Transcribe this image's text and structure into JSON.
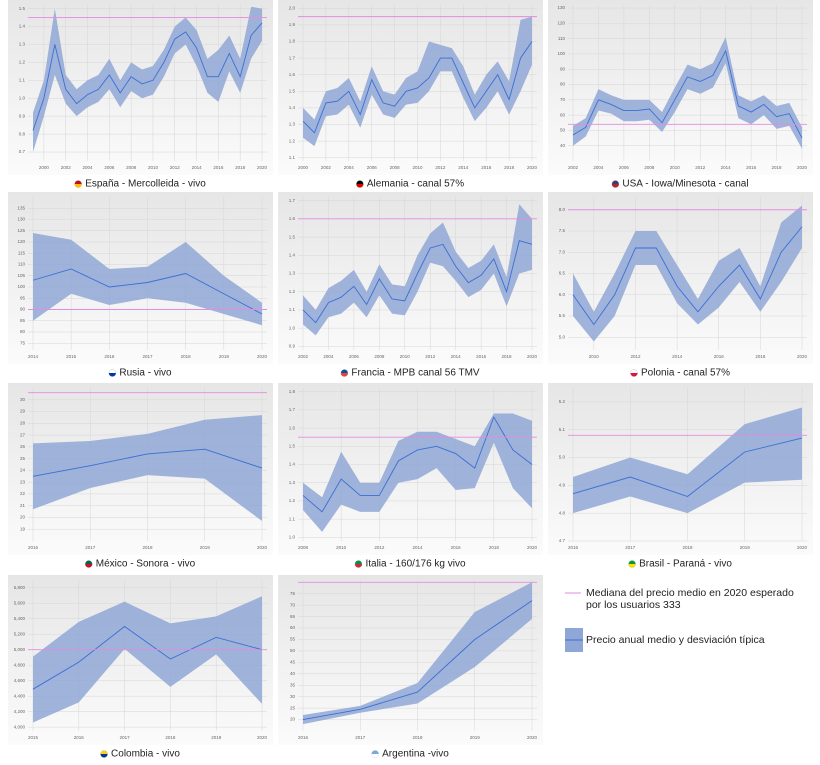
{
  "legend": {
    "median": "Mediana del precio medio en 2020 esperado por los usuarios 333",
    "mean": "Precio anual medio y desviación típica"
  },
  "chart_data": [
    {
      "type": "line",
      "title": "España - Mercolleida - vivo",
      "color": "#3b6fd4",
      "band_color": "#8fa7d6",
      "median_color": "#e58be0",
      "grid": true,
      "x": [
        1999,
        2000,
        2001,
        2002,
        2003,
        2004,
        2005,
        2006,
        2007,
        2008,
        2009,
        2010,
        2011,
        2012,
        2013,
        2014,
        2015,
        2016,
        2017,
        2018,
        2019,
        2020
      ],
      "values": [
        0.82,
        1.0,
        1.3,
        1.05,
        0.97,
        1.02,
        1.05,
        1.13,
        1.03,
        1.12,
        1.08,
        1.1,
        1.2,
        1.33,
        1.37,
        1.28,
        1.12,
        1.12,
        1.25,
        1.12,
        1.35,
        1.42
      ],
      "upper": [
        0.92,
        1.1,
        1.5,
        1.13,
        1.05,
        1.1,
        1.13,
        1.22,
        1.1,
        1.2,
        1.16,
        1.18,
        1.27,
        1.4,
        1.45,
        1.38,
        1.22,
        1.27,
        1.35,
        1.22,
        1.51,
        1.5
      ],
      "lower": [
        0.7,
        0.9,
        1.13,
        0.97,
        0.9,
        0.95,
        0.98,
        1.05,
        0.95,
        1.04,
        1.0,
        1.02,
        1.12,
        1.25,
        1.3,
        1.18,
        1.03,
        0.98,
        1.15,
        1.03,
        1.22,
        1.32
      ],
      "median": 1.45,
      "xlim": [
        1999,
        2020
      ],
      "xticks": [
        2000,
        2002,
        2004,
        2006,
        2008,
        2010,
        2012,
        2014,
        2016,
        2018,
        2020
      ],
      "ylim": [
        0.65,
        1.52
      ],
      "yticks": [
        0.7,
        0.8,
        0.9,
        {
          "value": 1,
          "label": "1.0"
        },
        1.1,
        1.2,
        1.3,
        1.4,
        1.5
      ]
    },
    {
      "type": "line",
      "title": "Alemania - canal 57%",
      "color": "#3b6fd4",
      "band_color": "#8fa7d6",
      "median_color": "#e58be0",
      "grid": true,
      "x": [
        2000,
        2001,
        2002,
        2003,
        2004,
        2005,
        2006,
        2007,
        2008,
        2009,
        2010,
        2011,
        2012,
        2013,
        2014,
        2015,
        2016,
        2017,
        2018,
        2019,
        2020
      ],
      "values": [
        1.32,
        1.25,
        1.43,
        1.44,
        1.5,
        1.36,
        1.57,
        1.43,
        1.41,
        1.5,
        1.52,
        1.58,
        1.7,
        1.7,
        1.55,
        1.4,
        1.5,
        1.6,
        1.45,
        1.7,
        1.8
      ],
      "upper": [
        1.4,
        1.33,
        1.5,
        1.52,
        1.58,
        1.44,
        1.65,
        1.5,
        1.48,
        1.58,
        1.62,
        1.8,
        1.78,
        1.76,
        1.65,
        1.48,
        1.6,
        1.68,
        1.56,
        1.93,
        1.95
      ],
      "lower": [
        1.22,
        1.17,
        1.35,
        1.36,
        1.42,
        1.28,
        1.48,
        1.36,
        1.34,
        1.42,
        1.43,
        1.5,
        1.62,
        1.62,
        1.46,
        1.32,
        1.4,
        1.5,
        1.36,
        1.5,
        1.66
      ],
      "median": 1.95,
      "xlim": [
        2000,
        2020
      ],
      "xticks": [
        2000,
        2002,
        2004,
        2006,
        2008,
        2010,
        2012,
        2014,
        2016,
        2018,
        2020
      ],
      "ylim": [
        1.08,
        2.02
      ],
      "yticks": [
        1.1,
        1.2,
        1.3,
        1.4,
        1.5,
        1.6,
        1.7,
        1.8,
        1.9,
        {
          "value": 2,
          "label": "2.0"
        }
      ]
    },
    {
      "type": "line",
      "title": "USA - Iowa/Minesota - canal",
      "color": "#3b6fd4",
      "band_color": "#8fa7d6",
      "median_color": "#e58be0",
      "grid": true,
      "x": [
        2002,
        2003,
        2004,
        2005,
        2006,
        2007,
        2008,
        2009,
        2010,
        2011,
        2012,
        2013,
        2014,
        2015,
        2016,
        2017,
        2018,
        2019,
        2020
      ],
      "values": [
        47,
        52,
        70,
        67,
        63,
        63,
        64,
        55,
        70,
        85,
        82,
        86,
        102,
        66,
        62,
        67,
        59,
        61,
        45
      ],
      "upper": [
        53,
        58,
        77,
        73,
        70,
        70,
        70,
        62,
        78,
        93,
        90,
        94,
        111,
        73,
        69,
        73,
        66,
        68,
        52
      ],
      "lower": [
        40,
        46,
        63,
        61,
        56,
        56,
        57,
        49,
        62,
        77,
        74,
        78,
        94,
        58,
        54,
        60,
        51,
        53,
        38
      ],
      "median": 54,
      "xlim": [
        2002,
        2020
      ],
      "xticks": [
        2002,
        2004,
        2006,
        2008,
        2010,
        2012,
        2014,
        2016,
        2018,
        2020
      ],
      "ylim": [
        30,
        132
      ],
      "yticks": [
        40,
        50,
        60,
        70,
        80,
        90,
        100,
        110,
        120,
        130
      ]
    },
    {
      "type": "line",
      "title": "Rusia - vivo",
      "color": "#3b6fd4",
      "band_color": "#8fa7d6",
      "median_color": "#e58be0",
      "grid": true,
      "x": [
        2014,
        2015,
        2016,
        2017,
        2018,
        2019,
        2020
      ],
      "values": [
        103,
        108,
        100,
        102,
        106,
        97,
        88
      ],
      "upper": [
        124,
        121,
        108,
        109,
        120,
        105,
        93
      ],
      "lower": [
        85,
        97,
        92,
        95,
        93,
        88,
        83
      ],
      "median": 90,
      "xlim": [
        2014,
        2020
      ],
      "xticks": [
        2014,
        2015,
        2016,
        2017,
        2018,
        2019,
        2020
      ],
      "ylim": [
        72,
        140
      ],
      "yticks": [
        75,
        80,
        85,
        90,
        95,
        100,
        105,
        110,
        115,
        120,
        125,
        130,
        135
      ]
    },
    {
      "type": "line",
      "title": "Francia - MPB canal 56 TMV",
      "color": "#3b6fd4",
      "band_color": "#8fa7d6",
      "median_color": "#e58be0",
      "grid": true,
      "x": [
        2002,
        2003,
        2004,
        2005,
        2006,
        2007,
        2008,
        2009,
        2010,
        2011,
        2012,
        2013,
        2014,
        2015,
        2016,
        2017,
        2018,
        2019,
        2020
      ],
      "values": [
        1.1,
        1.03,
        1.14,
        1.17,
        1.23,
        1.13,
        1.27,
        1.16,
        1.15,
        1.3,
        1.44,
        1.46,
        1.34,
        1.25,
        1.29,
        1.38,
        1.2,
        1.48,
        1.46
      ],
      "upper": [
        1.18,
        1.1,
        1.22,
        1.26,
        1.32,
        1.2,
        1.35,
        1.24,
        1.23,
        1.4,
        1.52,
        1.58,
        1.42,
        1.33,
        1.37,
        1.46,
        1.28,
        1.68,
        1.6
      ],
      "lower": [
        1.02,
        0.96,
        1.06,
        1.08,
        1.14,
        1.06,
        1.18,
        1.08,
        1.07,
        1.2,
        1.36,
        1.34,
        1.26,
        1.17,
        1.21,
        1.3,
        1.12,
        1.3,
        1.32
      ],
      "median": 1.6,
      "xlim": [
        2002,
        2020
      ],
      "xticks": [
        2002,
        2004,
        2006,
        2008,
        2010,
        2012,
        2014,
        2016,
        2018,
        2020
      ],
      "ylim": [
        0.88,
        1.72
      ],
      "yticks": [
        0.9,
        {
          "value": 1,
          "label": "1.0"
        },
        1.1,
        1.2,
        1.3,
        1.4,
        1.5,
        1.6,
        1.7
      ]
    },
    {
      "type": "line",
      "title": "Polonia - canal 57%",
      "color": "#3b6fd4",
      "band_color": "#8fa7d6",
      "median_color": "#e58be0",
      "grid": true,
      "x": [
        2009,
        2010,
        2011,
        2012,
        2013,
        2014,
        2015,
        2016,
        2017,
        2018,
        2019,
        2020
      ],
      "values": [
        6.0,
        5.3,
        6.0,
        7.1,
        7.1,
        6.2,
        5.6,
        6.2,
        6.7,
        5.9,
        7.0,
        7.6
      ],
      "upper": [
        6.5,
        5.6,
        6.5,
        7.5,
        7.5,
        6.7,
        5.9,
        6.8,
        7.1,
        6.2,
        7.7,
        8.1
      ],
      "lower": [
        5.5,
        4.9,
        5.5,
        6.7,
        6.7,
        5.8,
        5.3,
        5.7,
        6.3,
        5.6,
        6.3,
        7.1
      ],
      "median": 8.0,
      "xlim": [
        2009,
        2020
      ],
      "xticks": [
        2010,
        2012,
        2014,
        2016,
        2018,
        2020
      ],
      "ylim": [
        4.7,
        8.3
      ],
      "yticks": [
        {
          "value": 5,
          "label": "5.0"
        },
        5.5,
        {
          "value": 6,
          "label": "6.0"
        },
        6.5,
        {
          "value": 7,
          "label": "7.0"
        },
        7.5,
        {
          "value": 8,
          "label": "8.0"
        }
      ]
    },
    {
      "type": "line",
      "title": "México - Sonora - vivo",
      "color": "#3b6fd4",
      "band_color": "#8fa7d6",
      "median_color": "#e58be0",
      "grid": true,
      "x": [
        2016,
        2017,
        2018,
        2019,
        2020
      ],
      "values": [
        23.5,
        24.4,
        25.4,
        25.8,
        24.2
      ],
      "upper": [
        26.3,
        26.5,
        27.1,
        28.3,
        28.7
      ],
      "lower": [
        20.7,
        22.5,
        23.6,
        23.3,
        19.7
      ],
      "median": 30.6,
      "xlim": [
        2016,
        2020
      ],
      "xticks": [
        2016,
        2017,
        2018,
        2019,
        2020
      ],
      "ylim": [
        18,
        31
      ],
      "yticks": [
        19,
        20,
        21,
        22,
        23,
        24,
        25,
        26,
        27,
        28,
        29,
        30
      ]
    },
    {
      "type": "line",
      "title": "Italia - 160/176 kg vivo",
      "color": "#3b6fd4",
      "band_color": "#8fa7d6",
      "median_color": "#e58be0",
      "grid": true,
      "x": [
        2008,
        2009,
        2010,
        2011,
        2012,
        2013,
        2014,
        2015,
        2016,
        2017,
        2018,
        2019,
        2020
      ],
      "values": [
        1.23,
        1.14,
        1.32,
        1.23,
        1.23,
        1.42,
        1.48,
        1.5,
        1.46,
        1.38,
        1.66,
        1.48,
        1.4
      ],
      "upper": [
        1.3,
        1.22,
        1.47,
        1.3,
        1.3,
        1.53,
        1.58,
        1.58,
        1.54,
        1.5,
        1.68,
        1.68,
        1.64
      ],
      "lower": [
        1.15,
        1.03,
        1.18,
        1.14,
        1.14,
        1.3,
        1.32,
        1.38,
        1.26,
        1.27,
        1.52,
        1.27,
        1.16
      ],
      "median": 1.55,
      "xlim": [
        2008,
        2020
      ],
      "xticks": [
        2008,
        2010,
        2012,
        2014,
        2016,
        2018,
        2020
      ],
      "ylim": [
        0.98,
        1.82
      ],
      "yticks": [
        {
          "value": 1,
          "label": "1.0"
        },
        1.1,
        1.2,
        1.3,
        1.4,
        1.5,
        1.6,
        1.7,
        1.8
      ]
    },
    {
      "type": "line",
      "title": "Brasil - Paraná - vivo",
      "color": "#3b6fd4",
      "band_color": "#8fa7d6",
      "median_color": "#e58be0",
      "grid": true,
      "x": [
        2016,
        2017,
        2018,
        2019,
        2020
      ],
      "values": [
        4.87,
        4.93,
        4.86,
        5.02,
        5.07
      ],
      "upper": [
        4.93,
        5.0,
        4.94,
        5.12,
        5.18
      ],
      "lower": [
        4.8,
        4.86,
        4.8,
        4.91,
        4.92
      ],
      "median": 5.08,
      "xlim": [
        2016,
        2020
      ],
      "xticks": [
        2016,
        2017,
        2018,
        2019,
        2020
      ],
      "ylim": [
        4.7,
        5.25
      ],
      "yticks": [
        4.7,
        4.8,
        4.9,
        {
          "value": 5,
          "label": "5.0"
        },
        5.1,
        5.2
      ]
    },
    {
      "type": "line",
      "title": "Colombia - vivo",
      "color": "#3b6fd4",
      "band_color": "#8fa7d6",
      "median_color": "#e58be0",
      "grid": true,
      "x": [
        2015,
        2016,
        2017,
        2018,
        2019,
        2020
      ],
      "values": [
        4490,
        4840,
        5300,
        4880,
        5160,
        5000
      ],
      "upper": [
        4910,
        5360,
        5620,
        5340,
        5430,
        5690
      ],
      "lower": [
        4060,
        4320,
        5010,
        4520,
        4940,
        4300
      ],
      "median": 5000,
      "xlim": [
        2015,
        2020
      ],
      "xticks": [
        2015,
        2016,
        2017,
        2018,
        2019,
        2020
      ],
      "ylim": [
        3950,
        5900
      ],
      "yticks": [
        {
          "value": 4000,
          "label": "4,000"
        },
        {
          "value": 4200,
          "label": "4,200"
        },
        {
          "value": 4400,
          "label": "4,400"
        },
        {
          "value": 4600,
          "label": "4,600"
        },
        {
          "value": 4800,
          "label": "4,800"
        },
        {
          "value": 5000,
          "label": "5,000"
        },
        {
          "value": 5200,
          "label": "5,200"
        },
        {
          "value": 5400,
          "label": "5,400"
        },
        {
          "value": 5600,
          "label": "5,600"
        },
        {
          "value": 5800,
          "label": "5,800"
        }
      ]
    },
    {
      "type": "line",
      "title": "Argentina -vivo",
      "color": "#3b6fd4",
      "band_color": "#8fa7d6",
      "median_color": "#e58be0",
      "grid": true,
      "x": [
        2016,
        2017,
        2018,
        2019,
        2020
      ],
      "values": [
        20,
        24.5,
        32,
        55,
        72
      ],
      "upper": [
        22,
        26,
        36,
        67,
        80
      ],
      "lower": [
        18,
        23,
        27,
        43,
        64
      ],
      "median": 80,
      "xlim": [
        2016,
        2020
      ],
      "xticks": [
        2016,
        2017,
        2018,
        2019,
        2020
      ],
      "ylim": [
        15,
        81
      ],
      "yticks": [
        20,
        25,
        30,
        35,
        40,
        45,
        50,
        55,
        60,
        65,
        70,
        75
      ]
    }
  ]
}
